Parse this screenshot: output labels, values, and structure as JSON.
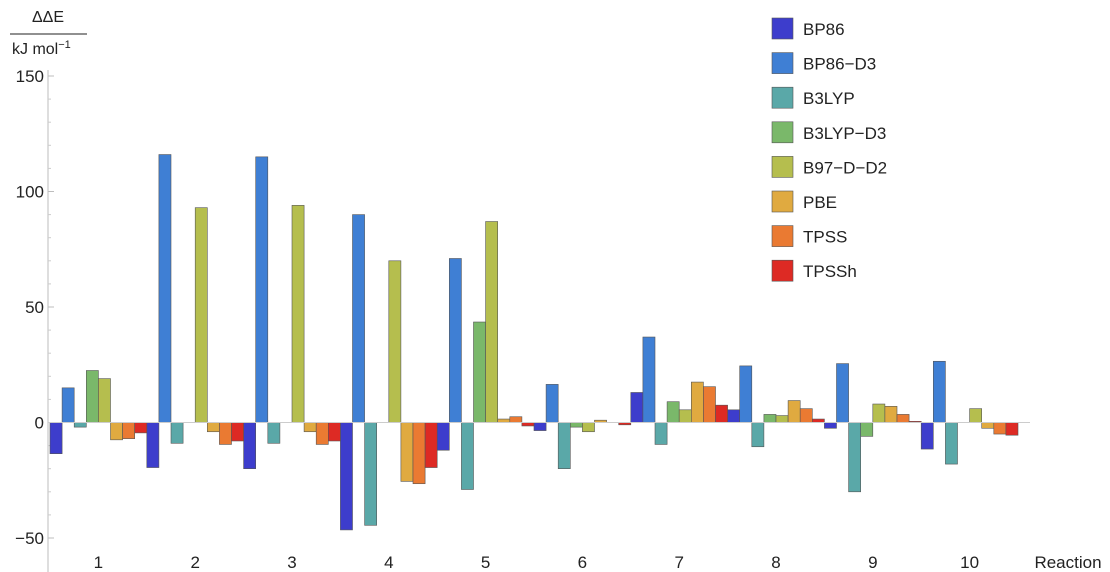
{
  "chart_data": {
    "type": "bar",
    "ylabel_numerator": "ΔΔE",
    "ylabel_denominator": "kJ mol",
    "ylabel_exponent": "−1",
    "xlabel": "Reaction",
    "ylim": [
      -55,
      155
    ],
    "yticks": [
      {
        "value": -50,
        "label": "−50"
      },
      {
        "value": 0,
        "label": "0"
      },
      {
        "value": 50,
        "label": "50"
      },
      {
        "value": 100,
        "label": "100"
      },
      {
        "value": 150,
        "label": "150"
      }
    ],
    "categories": [
      "1",
      "2",
      "3",
      "4",
      "5",
      "6",
      "7",
      "8",
      "9",
      "10"
    ],
    "legend_position": "top-right",
    "series": [
      {
        "name": "BP86",
        "color": "#3d3dcc",
        "values": [
          -13.5,
          -19.5,
          -20,
          -46.5,
          -12,
          -3.5,
          13,
          5.5,
          -2.5,
          -11.5
        ]
      },
      {
        "name": "BP86−D3",
        "color": "#3f7fd4",
        "values": [
          15,
          116,
          115,
          90,
          71,
          16.5,
          37,
          24.5,
          25.5,
          26.5
        ]
      },
      {
        "name": "B3LYP",
        "color": "#5aa8a8",
        "values": [
          -2,
          -9,
          -9,
          -44.5,
          -29,
          -20,
          -9.5,
          -10.5,
          -30,
          -18
        ]
      },
      {
        "name": "B3LYP−D3",
        "color": "#7ab86a",
        "values": [
          22.5,
          0,
          0,
          0,
          43.5,
          -2,
          9,
          3.5,
          -6,
          0
        ]
      },
      {
        "name": "B97−D−D2",
        "color": "#b5be4e",
        "values": [
          19,
          93,
          94,
          70,
          87,
          -4,
          5.5,
          3,
          8,
          6
        ]
      },
      {
        "name": "PBE",
        "color": "#e0aa40",
        "values": [
          -7.5,
          -4,
          -4,
          -25.5,
          1.5,
          1,
          17.5,
          9.5,
          7,
          -2.5
        ]
      },
      {
        "name": "TPSS",
        "color": "#ea7a32",
        "values": [
          -7,
          -9.5,
          -9.5,
          -26.5,
          2.5,
          0,
          15.5,
          6,
          3.5,
          -5
        ]
      },
      {
        "name": "TPSSh",
        "color": "#dd2a24",
        "values": [
          -4.5,
          -8,
          -8,
          -19.5,
          -1.5,
          -1,
          7.5,
          1.5,
          0.5,
          -5.5
        ]
      }
    ]
  }
}
